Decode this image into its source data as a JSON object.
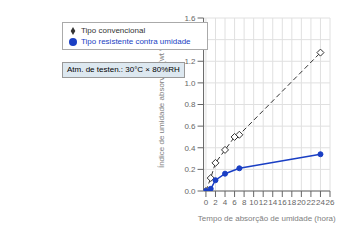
{
  "chart_data": {
    "type": "line",
    "xlabel": "Tempo de absorção de umidade (hora)",
    "ylabel": "Índice de umidade absorvida (wt %)",
    "annotation": "Atm. de testen.: 30°C × 80%RH",
    "series": [
      {
        "name": "Tipo convencional",
        "color": "#333333",
        "line_style": "dashed",
        "marker": "diamond",
        "x": [
          0,
          1,
          2,
          4,
          6,
          7,
          24
        ],
        "values": [
          0.0,
          0.12,
          0.26,
          0.38,
          0.5,
          0.52,
          1.28
        ]
      },
      {
        "name": "Tipo resistente contra umidade",
        "color": "#1a3fc4",
        "line_style": "solid",
        "marker": "circle",
        "x": [
          0,
          1,
          2,
          4,
          7,
          24
        ],
        "values": [
          0.0,
          0.02,
          0.1,
          0.16,
          0.21,
          0.34
        ]
      }
    ],
    "xlim": [
      -0.5,
      26
    ],
    "ylim": [
      0,
      1.6
    ],
    "xticks": [
      0,
      2,
      4,
      6,
      8,
      10,
      12,
      14,
      16,
      18,
      20,
      22,
      24,
      26
    ],
    "yticks": [
      {
        "value": 0.0,
        "label": "0.0"
      },
      0.2,
      0.4,
      0.6,
      0.8,
      {
        "value": 1.0,
        "label": "1.0"
      },
      1.2,
      1.4,
      1.6
    ],
    "grid": true,
    "legend": "upper left"
  }
}
